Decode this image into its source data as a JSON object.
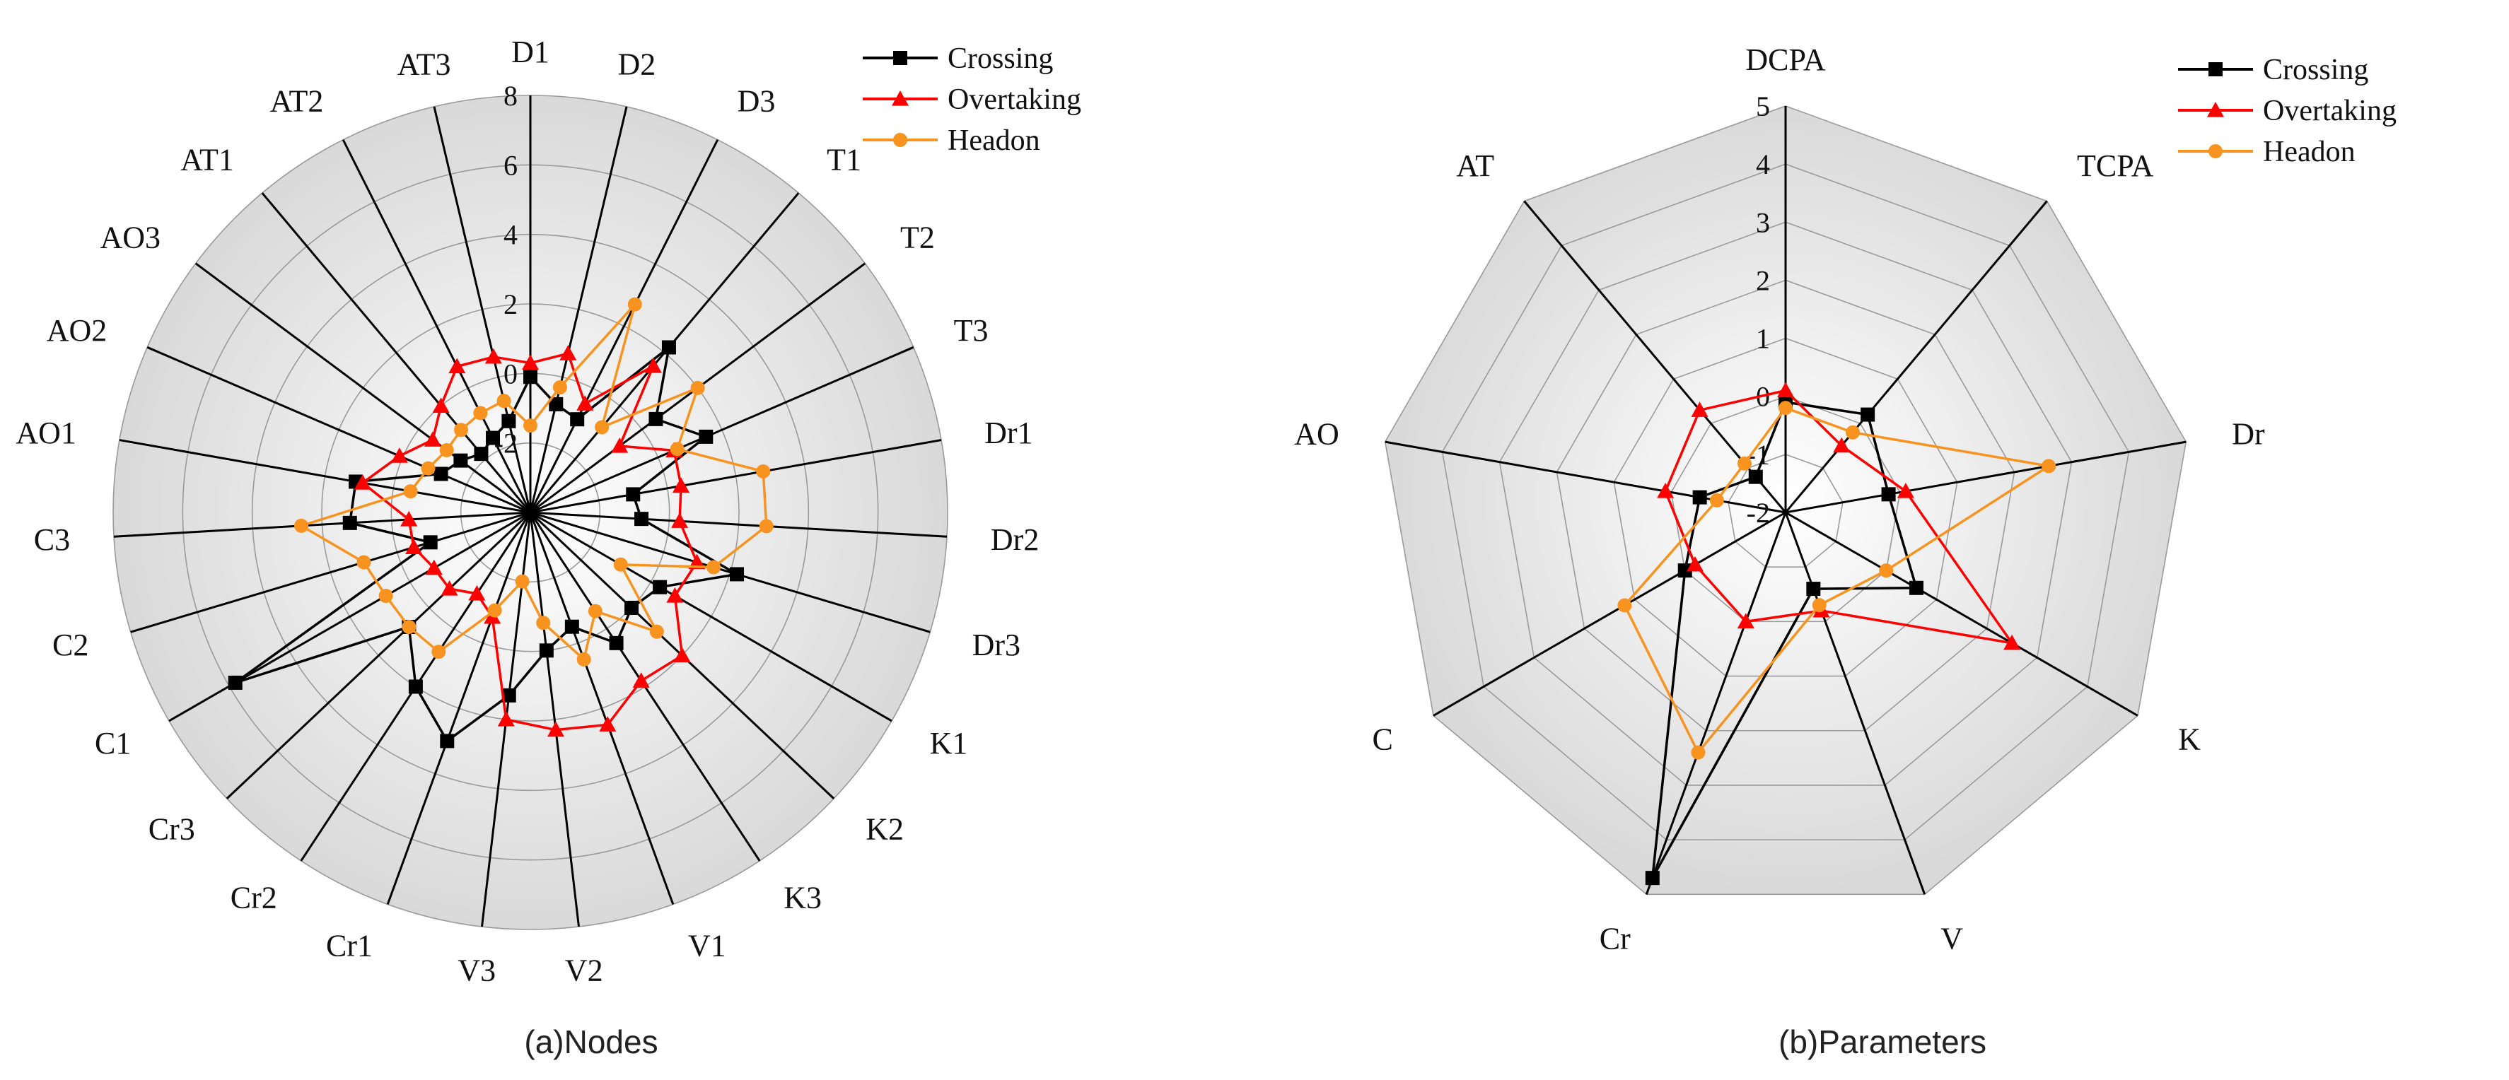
{
  "colors": {
    "Crossing": "#000000",
    "Overtaking": "#ff0000",
    "Headon": "#f7931e",
    "grid": "#9a9a9a",
    "spoke": "#000000"
  },
  "chart_data": [
    {
      "type": "radar",
      "id": "nodes",
      "caption": "(a)Nodes",
      "axes": [
        "D1",
        "D2",
        "D3",
        "T1",
        "T2",
        "T3",
        "Dr1",
        "Dr2",
        "Dr3",
        "K1",
        "K2",
        "K3",
        "V1",
        "V2",
        "V3",
        "Cr1",
        "Cr2",
        "Cr3",
        "C1",
        "C2",
        "C3",
        "AO1",
        "AO2",
        "AO3",
        "AT1",
        "AT2",
        "AT3"
      ],
      "range": [
        -4,
        8
      ],
      "ticks": [
        -4,
        -2,
        0,
        2,
        4,
        6,
        8
      ],
      "tick_labels": [
        "",
        "-2",
        "0",
        "2",
        "4",
        "6",
        "8"
      ],
      "legend": [
        "Crossing",
        "Overtaking",
        "Headon"
      ],
      "series": [
        {
          "name": "Crossing",
          "marker": "square",
          "values": [
            -0.1,
            -0.8,
            -1.0,
            2.2,
            0.5,
            1.5,
            -1.0,
            -0.8,
            2.2,
            0.3,
            0.0,
            0.5,
            -0.5,
            0.0,
            1.3,
            3.0,
            2.0,
            0.8,
            5.8,
            -1.0,
            1.2,
            1.1,
            -1.2,
            -1.5,
            -1.8,
            -1.6,
            -1.3
          ]
        },
        {
          "name": "Overtaking",
          "marker": "triangle",
          "values": [
            0.3,
            0.7,
            -0.5,
            1.5,
            -0.8,
            0.5,
            0.4,
            0.3,
            1.0,
            0.8,
            2.0,
            1.8,
            2.5,
            2.3,
            2.0,
            -0.8,
            -1.2,
            -0.8,
            -0.8,
            -0.5,
            -0.5,
            0.9,
            0.1,
            -0.5,
            0.0,
            0.7,
            0.6
          ]
        },
        {
          "name": "Headon",
          "marker": "circle",
          "values": [
            -1.5,
            -0.3,
            2.7,
            -0.8,
            2.0,
            0.6,
            2.8,
            2.8,
            1.5,
            -1.0,
            1.0,
            -0.6,
            0.5,
            -0.8,
            -2.0,
            -1.0,
            0.8,
            0.8,
            0.8,
            1.0,
            2.6,
            -0.5,
            -0.8,
            -1.0,
            -0.9,
            -0.8,
            -0.7
          ]
        }
      ]
    },
    {
      "type": "radar",
      "id": "parameters",
      "caption": "(b)Parameters",
      "axes": [
        "DCPA",
        "TCPA",
        "Dr",
        "K",
        "V",
        "Cr",
        "C",
        "AO",
        "AT"
      ],
      "range": [
        -2,
        5
      ],
      "ticks": [
        -2,
        -1,
        0,
        1,
        2,
        3,
        4,
        5
      ],
      "tick_labels": [
        "-2",
        "-1",
        "0",
        "1",
        "2",
        "3",
        "4",
        "5"
      ],
      "legend": [
        "Crossing",
        "Overtaking",
        "Headon"
      ],
      "series": [
        {
          "name": "Crossing",
          "marker": "square",
          "values": [
            -0.1,
            0.2,
            -0.2,
            0.6,
            -0.6,
            4.7,
            0.0,
            -0.5,
            -1.2
          ]
        },
        {
          "name": "Overtaking",
          "marker": "triangle",
          "values": [
            0.1,
            -0.5,
            0.1,
            2.5,
            -0.2,
            0.0,
            -0.2,
            0.1,
            0.3
          ]
        },
        {
          "name": "Headon",
          "marker": "circle",
          "values": [
            -0.2,
            -0.2,
            2.6,
            0.0,
            -0.3,
            2.4,
            1.2,
            -0.8,
            -0.9
          ]
        }
      ]
    }
  ]
}
